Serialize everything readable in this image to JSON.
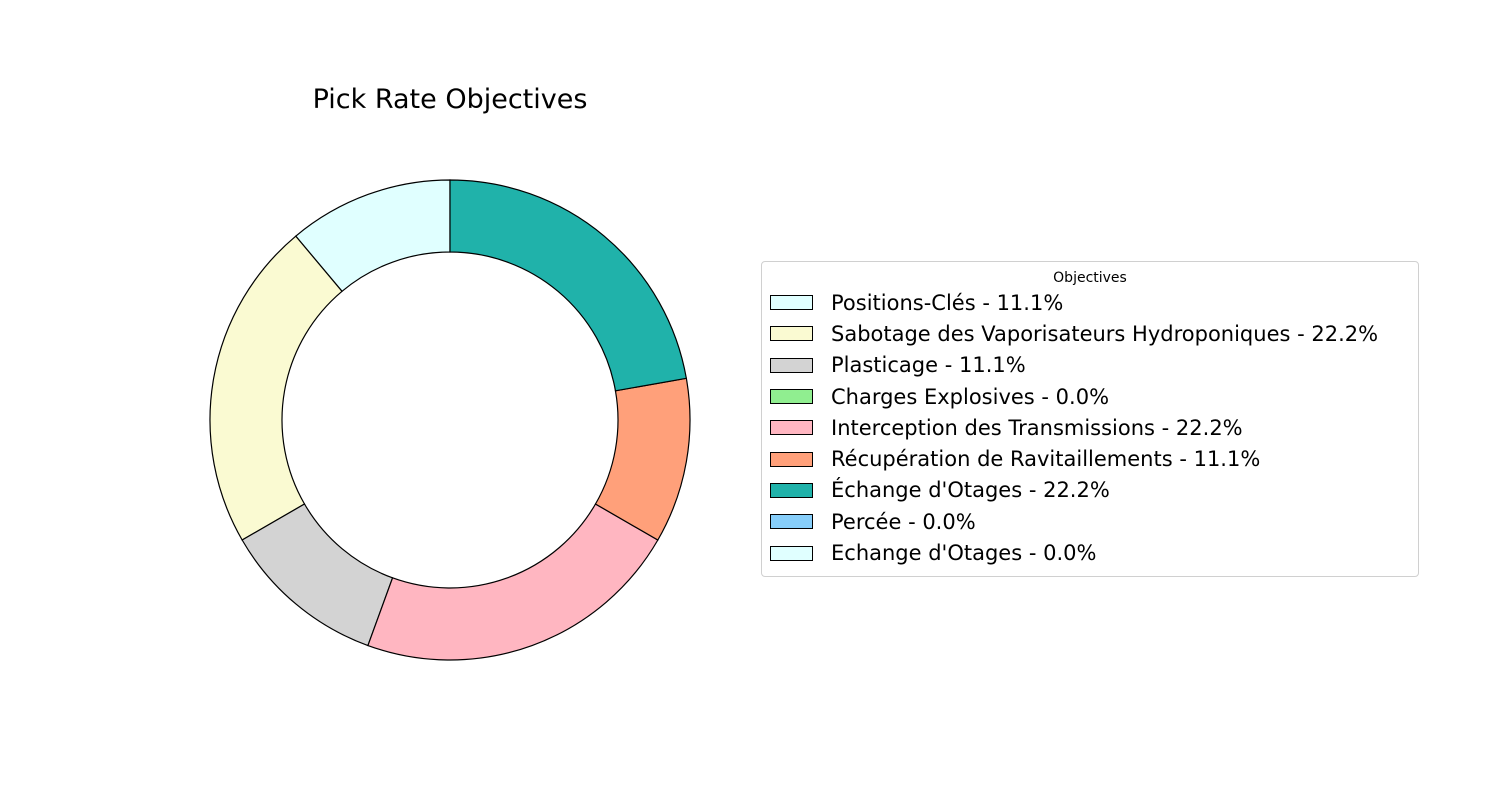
{
  "chart_data": {
    "type": "pie",
    "title": "Pick Rate Objectives",
    "legend_title": "Objectives",
    "legend_placement": "right",
    "donut": true,
    "slices": [
      {
        "label": "Positions-Clés - 11.1%",
        "value": 11.1,
        "color": "#e0ffff"
      },
      {
        "label": "Sabotage des Vaporisateurs Hydroponiques - 22.2%",
        "value": 22.2,
        "color": "#fafad2"
      },
      {
        "label": "Plasticage - 11.1%",
        "value": 11.1,
        "color": "#d3d3d3"
      },
      {
        "label": "Charges Explosives - 0.0%",
        "value": 0.0,
        "color": "#90ee90"
      },
      {
        "label": "Interception des Transmissions - 22.2%",
        "value": 22.2,
        "color": "#ffb6c1"
      },
      {
        "label": "Récupération de Ravitaillements - 11.1%",
        "value": 11.1,
        "color": "#ffa07a"
      },
      {
        "label": "Échange d'Otages - 22.2%",
        "value": 22.2,
        "color": "#20b2aa"
      },
      {
        "label": "Percée - 0.0%",
        "value": 0.0,
        "color": "#87cefa"
      },
      {
        "label": "Echange d'Otages - 0.0%",
        "value": 0.0,
        "color": "#e0ffff"
      }
    ]
  }
}
